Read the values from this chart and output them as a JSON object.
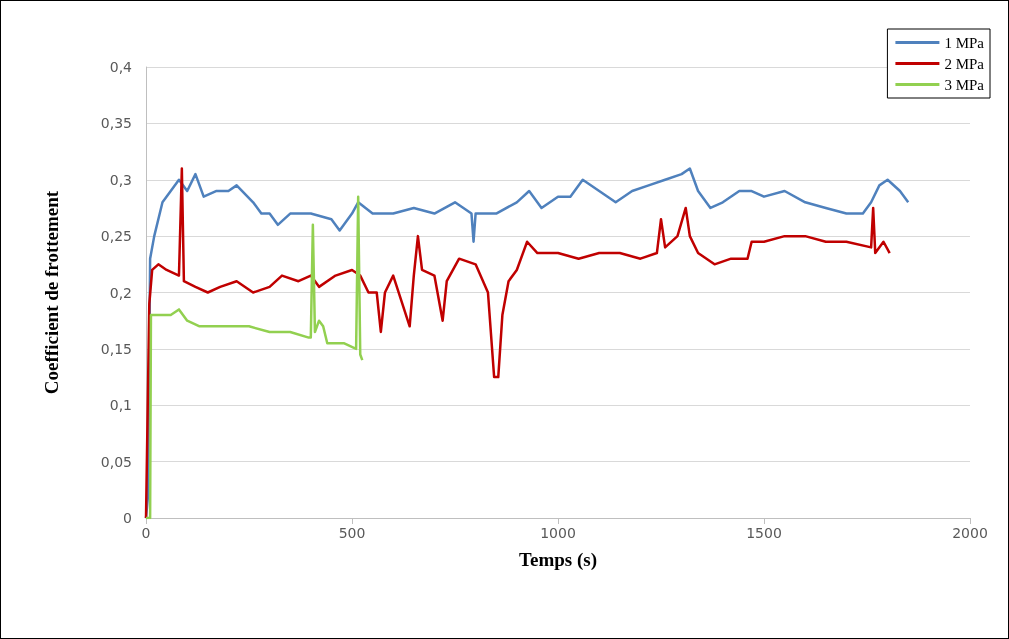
{
  "chart_data": {
    "type": "line",
    "xlabel": "Temps (s)",
    "ylabel": "Coefficient de frottement",
    "xlim": [
      0,
      2000
    ],
    "xticks": [
      0,
      500,
      1000,
      1500,
      2000
    ],
    "ylim": [
      0,
      0.4
    ],
    "yticks": [
      {
        "value": 0,
        "label": "0"
      },
      {
        "value": 0.05,
        "label": "0,05"
      },
      {
        "value": 0.1,
        "label": "0,1"
      },
      {
        "value": 0.15,
        "label": "0,15"
      },
      {
        "value": 0.2,
        "label": "0,2"
      },
      {
        "value": 0.25,
        "label": "0,25"
      },
      {
        "value": 0.3,
        "label": "0,3"
      },
      {
        "value": 0.35,
        "label": "0,35"
      },
      {
        "value": 0.4,
        "label": "0,4"
      }
    ],
    "grid": "y",
    "legend": "top right",
    "marker": "none",
    "line_style": "solid",
    "series": [
      {
        "name": "1 MPa",
        "color": "#4f81bd",
        "x": [
          0,
          5,
          10,
          20,
          40,
          60,
          80,
          100,
          120,
          140,
          170,
          200,
          220,
          260,
          280,
          300,
          320,
          350,
          400,
          450,
          470,
          500,
          515,
          550,
          600,
          650,
          700,
          750,
          790,
          795,
          800,
          850,
          900,
          930,
          960,
          1000,
          1030,
          1060,
          1100,
          1140,
          1180,
          1220,
          1260,
          1300,
          1320,
          1340,
          1370,
          1400,
          1440,
          1470,
          1500,
          1550,
          1600,
          1650,
          1700,
          1740,
          1760,
          1780,
          1800,
          1830,
          1850
        ],
        "values": [
          0,
          0.02,
          0.23,
          0.25,
          0.28,
          0.29,
          0.3,
          0.29,
          0.305,
          0.285,
          0.29,
          0.29,
          0.295,
          0.28,
          0.27,
          0.27,
          0.26,
          0.27,
          0.27,
          0.265,
          0.255,
          0.27,
          0.28,
          0.27,
          0.27,
          0.275,
          0.27,
          0.28,
          0.27,
          0.245,
          0.27,
          0.27,
          0.28,
          0.29,
          0.275,
          0.285,
          0.285,
          0.3,
          0.29,
          0.28,
          0.29,
          0.295,
          0.3,
          0.305,
          0.31,
          0.29,
          0.275,
          0.28,
          0.29,
          0.29,
          0.285,
          0.29,
          0.28,
          0.275,
          0.27,
          0.27,
          0.28,
          0.295,
          0.3,
          0.29,
          0.28
        ]
      },
      {
        "name": "2 MPa",
        "color": "#c00000",
        "x": [
          0,
          8,
          15,
          30,
          50,
          80,
          87,
          92,
          120,
          150,
          180,
          220,
          260,
          300,
          330,
          370,
          400,
          420,
          460,
          500,
          520,
          540,
          560,
          570,
          580,
          600,
          640,
          650,
          660,
          670,
          700,
          720,
          730,
          760,
          800,
          830,
          845,
          855,
          865,
          880,
          900,
          925,
          950,
          1000,
          1050,
          1100,
          1150,
          1200,
          1240,
          1250,
          1260,
          1290,
          1310,
          1320,
          1340,
          1380,
          1420,
          1460,
          1470,
          1500,
          1550,
          1600,
          1650,
          1700,
          1760,
          1765,
          1770,
          1790,
          1805
        ],
        "values": [
          0,
          0.19,
          0.22,
          0.225,
          0.22,
          0.215,
          0.31,
          0.21,
          0.205,
          0.2,
          0.205,
          0.21,
          0.2,
          0.205,
          0.215,
          0.21,
          0.215,
          0.205,
          0.215,
          0.22,
          0.215,
          0.2,
          0.2,
          0.165,
          0.2,
          0.215,
          0.17,
          0.215,
          0.25,
          0.22,
          0.215,
          0.175,
          0.21,
          0.23,
          0.225,
          0.2,
          0.125,
          0.125,
          0.18,
          0.21,
          0.22,
          0.245,
          0.235,
          0.235,
          0.23,
          0.235,
          0.235,
          0.23,
          0.235,
          0.265,
          0.24,
          0.25,
          0.275,
          0.25,
          0.235,
          0.225,
          0.23,
          0.23,
          0.245,
          0.245,
          0.25,
          0.25,
          0.245,
          0.245,
          0.24,
          0.275,
          0.235,
          0.245,
          0.235
        ]
      },
      {
        "name": "3 MPa",
        "color": "#92d050",
        "x": [
          0,
          10,
          12,
          30,
          60,
          80,
          100,
          130,
          160,
          200,
          250,
          300,
          350,
          395,
          400,
          405,
          410,
          420,
          430,
          440,
          480,
          510,
          515,
          520,
          525
        ],
        "values": [
          0,
          0,
          0.18,
          0.18,
          0.18,
          0.185,
          0.175,
          0.17,
          0.17,
          0.17,
          0.17,
          0.165,
          0.165,
          0.16,
          0.16,
          0.26,
          0.165,
          0.175,
          0.17,
          0.155,
          0.155,
          0.15,
          0.285,
          0.145,
          0.14
        ]
      }
    ]
  }
}
